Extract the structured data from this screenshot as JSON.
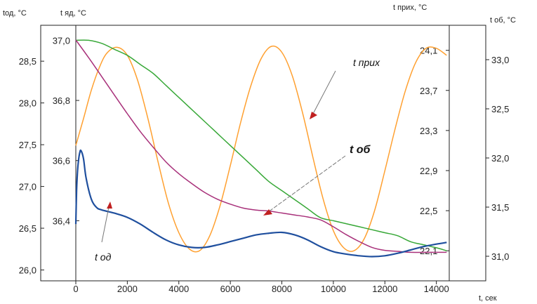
{
  "chart_data": {
    "type": "line",
    "x_axis": {
      "label": "t, сек",
      "min": 0,
      "max": 14500,
      "ticks": [
        0,
        2000,
        4000,
        6000,
        8000,
        10000,
        12000,
        14000
      ],
      "tick_labels": [
        "0",
        "2000",
        "4000",
        "6000",
        "8000",
        "10000",
        "12000",
        "14000"
      ]
    },
    "y_axes": {
      "t_od": {
        "label": "tод, °C",
        "range": [
          25.87,
          28.93
        ],
        "ticks": [
          26.0,
          26.5,
          27.0,
          27.5,
          28.0,
          28.5
        ],
        "tick_labels": [
          "26,0",
          "26,5",
          "27,0",
          "27,5",
          "28,0",
          "28,5"
        ]
      },
      "t_yad": {
        "label": "t яд, °C",
        "range": [
          36.2,
          37.05
        ],
        "ticks": [
          36.4,
          36.6,
          36.8,
          37.0
        ],
        "tick_labels": [
          "36,4",
          "36,6",
          "36,8",
          "37,0"
        ]
      },
      "t_prih": {
        "label": "t прих, °C",
        "range": [
          21.8,
          24.35
        ],
        "ticks": [
          22.1,
          22.5,
          22.9,
          23.3,
          23.7,
          24.1
        ],
        "tick_labels": [
          "22,1",
          "22,5",
          "22,9",
          "23,3",
          "23,7",
          "24,1"
        ]
      },
      "t_ob": {
        "label": "t об, °C",
        "range": [
          30.75,
          33.35
        ],
        "ticks": [
          31.0,
          31.5,
          32.0,
          32.5,
          33.0
        ],
        "tick_labels": [
          "31,0",
          "31,5",
          "32,0",
          "32,5",
          "33,0"
        ]
      }
    },
    "series": [
      {
        "name": "t прих",
        "axis": "t_prih",
        "color": "#ffa030",
        "x": [
          0,
          300,
          600,
          900,
          1200,
          1600,
          2000,
          2400,
          2800,
          3200,
          3600,
          4000,
          4400,
          4800,
          5200,
          5600,
          6000,
          6400,
          6800,
          7200,
          7600,
          8000,
          8400,
          8800,
          9200,
          9600,
          10000,
          10400,
          10800,
          11200,
          11600,
          12000,
          12400,
          12800,
          13200,
          13600,
          14000,
          14400
        ],
        "y": [
          23.15,
          23.42,
          23.7,
          23.92,
          24.07,
          24.13,
          24.05,
          23.8,
          23.42,
          22.98,
          22.57,
          22.28,
          22.12,
          22.1,
          22.25,
          22.55,
          22.95,
          23.38,
          23.75,
          24.02,
          24.14,
          24.08,
          23.85,
          23.48,
          23.04,
          22.62,
          22.3,
          22.13,
          22.1,
          22.22,
          22.5,
          22.9,
          23.32,
          23.7,
          23.98,
          24.12,
          24.12,
          24.05
        ]
      },
      {
        "name": "t яд",
        "axis": "t_yad",
        "color": "#38a838",
        "x": [
          0,
          500,
          1000,
          1500,
          2000,
          2500,
          3000,
          3500,
          4000,
          4500,
          5000,
          5500,
          6000,
          6500,
          7000,
          7500,
          8000,
          8500,
          9000,
          9500,
          10000,
          10500,
          11000,
          11500,
          12000,
          12500,
          13000,
          13500,
          14000,
          14400
        ],
        "y": [
          37.0,
          37.0,
          36.99,
          36.97,
          36.95,
          36.92,
          36.89,
          36.85,
          36.81,
          36.77,
          36.73,
          36.69,
          36.65,
          36.61,
          36.57,
          36.53,
          36.5,
          36.47,
          36.44,
          36.41,
          36.4,
          36.39,
          36.38,
          36.37,
          36.36,
          36.35,
          36.33,
          36.32,
          36.31,
          36.3
        ]
      },
      {
        "name": "t об",
        "axis": "t_ob",
        "color": "#a8307a",
        "x": [
          0,
          500,
          1000,
          1500,
          2000,
          2500,
          3000,
          3500,
          4000,
          4500,
          5000,
          5500,
          6000,
          6500,
          7000,
          7500,
          8000,
          8500,
          9000,
          9500,
          10000,
          10500,
          11000,
          11500,
          12000,
          12500,
          13000,
          13500,
          14000,
          14400
        ],
        "y": [
          33.2,
          33.02,
          32.83,
          32.64,
          32.45,
          32.27,
          32.11,
          31.96,
          31.84,
          31.74,
          31.65,
          31.58,
          31.53,
          31.49,
          31.47,
          31.46,
          31.44,
          31.42,
          31.4,
          31.37,
          31.3,
          31.22,
          31.15,
          31.09,
          31.06,
          31.05,
          31.04,
          31.04,
          31.04,
          31.04
        ]
      },
      {
        "name": "t од",
        "axis": "t_od",
        "color": "#1f4f9e",
        "x": [
          0,
          30,
          60,
          100,
          150,
          200,
          300,
          400,
          600,
          800,
          1000,
          1500,
          2000,
          2500,
          3000,
          3500,
          4000,
          4500,
          5000,
          5500,
          6000,
          6500,
          7000,
          7500,
          8000,
          8500,
          9000,
          9500,
          10000,
          10500,
          11000,
          11500,
          12000,
          12500,
          13000,
          13500,
          14000,
          14400
        ],
        "y": [
          26.55,
          26.95,
          27.15,
          27.3,
          27.4,
          27.43,
          27.33,
          27.1,
          26.85,
          26.75,
          26.72,
          26.68,
          26.63,
          26.55,
          26.45,
          26.36,
          26.3,
          26.27,
          26.27,
          26.3,
          26.34,
          26.38,
          26.42,
          26.44,
          26.45,
          26.42,
          26.36,
          26.28,
          26.22,
          26.19,
          26.17,
          26.16,
          26.17,
          26.2,
          26.24,
          26.28,
          26.31,
          26.33
        ]
      }
    ],
    "annotations": [
      {
        "text": "t прих",
        "target_series": "t прих",
        "target_x": 8800,
        "target_y": 23.4
      },
      {
        "text": "t об",
        "target_series": "t об",
        "target_x": 7400,
        "target_y": 31.45
      },
      {
        "text": "t од",
        "target_series": "t од",
        "target_x": 1300,
        "target_y": 26.68
      }
    ],
    "grid": false,
    "legend": "none"
  }
}
